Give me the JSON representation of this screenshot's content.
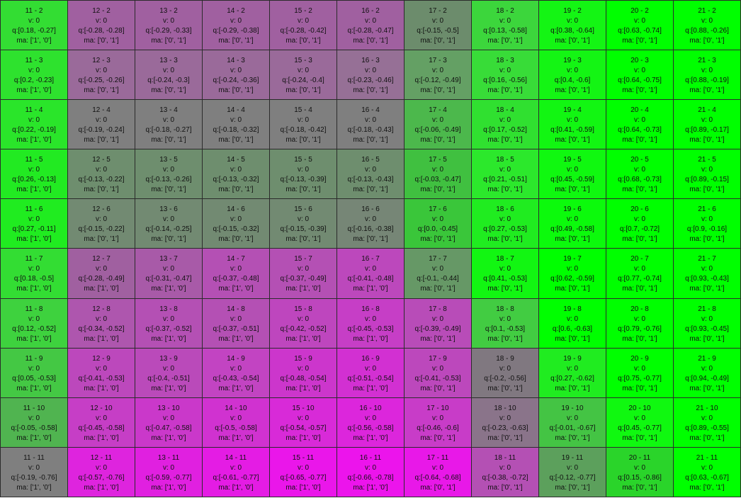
{
  "columns": [
    11,
    12,
    13,
    14,
    15,
    16,
    17,
    18,
    19,
    20,
    21
  ],
  "rows": [
    2,
    3,
    4,
    5,
    6,
    7,
    8,
    9,
    10,
    11
  ],
  "cells": [
    [
      {
        "id": "11 - 2",
        "v": "v: 0",
        "q": "q:[0.18, -0.27]",
        "ma": "ma: ['1', '0']",
        "color": "#33dd33"
      },
      {
        "id": "12 - 2",
        "v": "v: 0",
        "q": "q:[-0.28, -0.28]",
        "ma": "ma: ['0', '1']",
        "color": "#a060a0"
      },
      {
        "id": "13 - 2",
        "v": "v: 0",
        "q": "q:[-0.29, -0.33]",
        "ma": "ma: ['0', '1']",
        "color": "#a060a0"
      },
      {
        "id": "14 - 2",
        "v": "v: 0",
        "q": "q:[-0.29, -0.38]",
        "ma": "ma: ['0', '1']",
        "color": "#a060a0"
      },
      {
        "id": "15 - 2",
        "v": "v: 0",
        "q": "q:[-0.28, -0.42]",
        "ma": "ma: ['0', '1']",
        "color": "#a060a0"
      },
      {
        "id": "16 - 2",
        "v": "v: 0",
        "q": "q:[-0.28, -0.47]",
        "ma": "ma: ['0', '1']",
        "color": "#a060a0"
      },
      {
        "id": "17 - 2",
        "v": "v: 0",
        "q": "q:[-0.15, -0.5]",
        "ma": "ma: ['0', '1']",
        "color": "#6c8c6c"
      },
      {
        "id": "18 - 2",
        "v": "v: 0",
        "q": "q:[0.13, -0.58]",
        "ma": "ma: ['0', '1']",
        "color": "#3cd63c"
      },
      {
        "id": "19 - 2",
        "v": "v: 0",
        "q": "q:[0.38, -0.64]",
        "ma": "ma: ['0', '1']",
        "color": "#14f514"
      },
      {
        "id": "20 - 2",
        "v": "v: 0",
        "q": "q:[0.63, -0.74]",
        "ma": "ma: ['0', '1']",
        "color": "#00ff00"
      },
      {
        "id": "21 - 2",
        "v": "v: 0",
        "q": "q:[0.88, -0.26]",
        "ma": "ma: ['0', '1']",
        "color": "#00ff00"
      }
    ],
    [
      {
        "id": "11 - 3",
        "v": "v: 0",
        "q": "q:[0.2, -0.23]",
        "ma": "ma: ['1', '0']",
        "color": "#2ee22e"
      },
      {
        "id": "12 - 3",
        "v": "v: 0",
        "q": "q:[-0.25, -0.26]",
        "ma": "ma: ['0', '1']",
        "color": "#9a6a9a"
      },
      {
        "id": "13 - 3",
        "v": "v: 0",
        "q": "q:[-0.24, -0.3]",
        "ma": "ma: ['0', '1']",
        "color": "#9a6a9a"
      },
      {
        "id": "14 - 3",
        "v": "v: 0",
        "q": "q:[-0.24, -0.36]",
        "ma": "ma: ['0', '1']",
        "color": "#9a6a9a"
      },
      {
        "id": "15 - 3",
        "v": "v: 0",
        "q": "q:[-0.24, -0.4]",
        "ma": "ma: ['0', '1']",
        "color": "#9a6a9a"
      },
      {
        "id": "16 - 3",
        "v": "v: 0",
        "q": "q:[-0.23, -0.46]",
        "ma": "ma: ['0', '1']",
        "color": "#967096"
      },
      {
        "id": "17 - 3",
        "v": "v: 0",
        "q": "q:[-0.12, -0.49]",
        "ma": "ma: ['0', '1']",
        "color": "#64a064"
      },
      {
        "id": "18 - 3",
        "v": "v: 0",
        "q": "q:[0.16, -0.56]",
        "ma": "ma: ['0', '1']",
        "color": "#38dc38"
      },
      {
        "id": "19 - 3",
        "v": "v: 0",
        "q": "q:[0.4, -0.6]",
        "ma": "ma: ['0', '1']",
        "color": "#14f514"
      },
      {
        "id": "20 - 3",
        "v": "v: 0",
        "q": "q:[0.64, -0.75]",
        "ma": "ma: ['0', '1']",
        "color": "#00ff00"
      },
      {
        "id": "21 - 3",
        "v": "v: 0",
        "q": "q:[0.88, -0.19]",
        "ma": "ma: ['0', '1']",
        "color": "#00ff00"
      }
    ],
    [
      {
        "id": "11 - 4",
        "v": "v: 0",
        "q": "q:[0.22, -0.19]",
        "ma": "ma: ['1', '0']",
        "color": "#2ae52a"
      },
      {
        "id": "12 - 4",
        "v": "v: 0",
        "q": "q:[-0.19, -0.24]",
        "ma": "ma: ['0', '1']",
        "color": "#7f7f7f"
      },
      {
        "id": "13 - 4",
        "v": "v: 0",
        "q": "q:[-0.18, -0.27]",
        "ma": "ma: ['0', '1']",
        "color": "#7f7f7f"
      },
      {
        "id": "14 - 4",
        "v": "v: 0",
        "q": "q:[-0.18, -0.32]",
        "ma": "ma: ['0', '1']",
        "color": "#7f7f7f"
      },
      {
        "id": "15 - 4",
        "v": "v: 0",
        "q": "q:[-0.18, -0.42]",
        "ma": "ma: ['0', '1']",
        "color": "#7f7f7f"
      },
      {
        "id": "16 - 4",
        "v": "v: 0",
        "q": "q:[-0.18, -0.43]",
        "ma": "ma: ['0', '1']",
        "color": "#7f7f7f"
      },
      {
        "id": "17 - 4",
        "v": "v: 0",
        "q": "q:[-0.06, -0.49]",
        "ma": "ma: ['0', '1']",
        "color": "#4cb84c"
      },
      {
        "id": "18 - 4",
        "v": "v: 0",
        "q": "q:[0.17, -0.52]",
        "ma": "ma: ['0', '1']",
        "color": "#30e030"
      },
      {
        "id": "19 - 4",
        "v": "v: 0",
        "q": "q:[0.41, -0.59]",
        "ma": "ma: ['0', '1']",
        "color": "#12f612"
      },
      {
        "id": "20 - 4",
        "v": "v: 0",
        "q": "q:[0.64, -0.73]",
        "ma": "ma: ['0', '1']",
        "color": "#00ff00"
      },
      {
        "id": "21 - 4",
        "v": "v: 0",
        "q": "q:[0.89, -0.17]",
        "ma": "ma: ['0', '1']",
        "color": "#00ff00"
      }
    ],
    [
      {
        "id": "11 - 5",
        "v": "v: 0",
        "q": "q:[0.26, -0.13]",
        "ma": "ma: ['1', '0']",
        "color": "#22ea22"
      },
      {
        "id": "12 - 5",
        "v": "v: 0",
        "q": "q:[-0.13, -0.22]",
        "ma": "ma: ['0', '1']",
        "color": "#6e8e6e"
      },
      {
        "id": "13 - 5",
        "v": "v: 0",
        "q": "q:[-0.13, -0.26]",
        "ma": "ma: ['0', '1']",
        "color": "#6e8e6e"
      },
      {
        "id": "14 - 5",
        "v": "v: 0",
        "q": "q:[-0.13, -0.32]",
        "ma": "ma: ['0', '1']",
        "color": "#6e8e6e"
      },
      {
        "id": "15 - 5",
        "v": "v: 0",
        "q": "q:[-0.13, -0.39]",
        "ma": "ma: ['0', '1']",
        "color": "#6e8e6e"
      },
      {
        "id": "16 - 5",
        "v": "v: 0",
        "q": "q:[-0.13, -0.43]",
        "ma": "ma: ['0', '1']",
        "color": "#6e8e6e"
      },
      {
        "id": "17 - 5",
        "v": "v: 0",
        "q": "q:[-0.03, -0.47]",
        "ma": "ma: ['0', '1']",
        "color": "#40c040"
      },
      {
        "id": "18 - 5",
        "v": "v: 0",
        "q": "q:[0.21, -0.51]",
        "ma": "ma: ['0', '1']",
        "color": "#2ce82c"
      },
      {
        "id": "19 - 5",
        "v": "v: 0",
        "q": "q:[0.45, -0.59]",
        "ma": "ma: ['0', '1']",
        "color": "#10f810"
      },
      {
        "id": "20 - 5",
        "v": "v: 0",
        "q": "q:[0.68, -0.73]",
        "ma": "ma: ['0', '1']",
        "color": "#00ff00"
      },
      {
        "id": "21 - 5",
        "v": "v: 0",
        "q": "q:[0.89, -0.15]",
        "ma": "ma: ['0', '1']",
        "color": "#00ff00"
      }
    ],
    [
      {
        "id": "11 - 6",
        "v": "v: 0",
        "q": "q:[0.27, -0.11]",
        "ma": "ma: ['1', '0']",
        "color": "#20ec20"
      },
      {
        "id": "12 - 6",
        "v": "v: 0",
        "q": "q:[-0.15, -0.22]",
        "ma": "ma: ['0', '1']",
        "color": "#728a72"
      },
      {
        "id": "13 - 6",
        "v": "v: 0",
        "q": "q:[-0.14, -0.25]",
        "ma": "ma: ['0', '1']",
        "color": "#728a72"
      },
      {
        "id": "14 - 6",
        "v": "v: 0",
        "q": "q:[-0.15, -0.32]",
        "ma": "ma: ['0', '1']",
        "color": "#728a72"
      },
      {
        "id": "15 - 6",
        "v": "v: 0",
        "q": "q:[-0.15, -0.39]",
        "ma": "ma: ['0', '1']",
        "color": "#728a72"
      },
      {
        "id": "16 - 6",
        "v": "v: 0",
        "q": "q:[-0.16, -0.38]",
        "ma": "ma: ['0', '1']",
        "color": "#768676"
      },
      {
        "id": "17 - 6",
        "v": "v: 0",
        "q": "q:[0.0, -0.45]",
        "ma": "ma: ['0', '1']",
        "color": "#3ac63a"
      },
      {
        "id": "18 - 6",
        "v": "v: 0",
        "q": "q:[0.27, -0.53]",
        "ma": "ma: ['0', '1']",
        "color": "#20ec20"
      },
      {
        "id": "19 - 6",
        "v": "v: 0",
        "q": "q:[0.49, -0.58]",
        "ma": "ma: ['0', '1']",
        "color": "#0cfa0c"
      },
      {
        "id": "20 - 6",
        "v": "v: 0",
        "q": "q:[0.7, -0.72]",
        "ma": "ma: ['0', '1']",
        "color": "#00ff00"
      },
      {
        "id": "21 - 6",
        "v": "v: 0",
        "q": "q:[0.9, -0.16]",
        "ma": "ma: ['0', '1']",
        "color": "#00ff00"
      }
    ],
    [
      {
        "id": "11 - 7",
        "v": "v: 0",
        "q": "q:[0.18, -0.5]",
        "ma": "ma: ['1', '0']",
        "color": "#33dd33"
      },
      {
        "id": "12 - 7",
        "v": "v: 0",
        "q": "q:[-0.28, -0.49]",
        "ma": "ma: ['1', '0']",
        "color": "#a060a0"
      },
      {
        "id": "13 - 7",
        "v": "v: 0",
        "q": "q:[-0.31, -0.47]",
        "ma": "ma: ['1', '0']",
        "color": "#a85aa8"
      },
      {
        "id": "14 - 7",
        "v": "v: 0",
        "q": "q:[-0.37, -0.48]",
        "ma": "ma: ['1', '0']",
        "color": "#b450b4"
      },
      {
        "id": "15 - 7",
        "v": "v: 0",
        "q": "q:[-0.37, -0.49]",
        "ma": "ma: ['1', '0']",
        "color": "#b450b4"
      },
      {
        "id": "16 - 7",
        "v": "v: 0",
        "q": "q:[-0.41, -0.48]",
        "ma": "ma: ['1', '0']",
        "color": "#bc48bc"
      },
      {
        "id": "17 - 7",
        "v": "v: 0",
        "q": "q:[-0.1, -0.44]",
        "ma": "ma: ['0', '1']",
        "color": "#669866"
      },
      {
        "id": "18 - 7",
        "v": "v: 0",
        "q": "q:[0.41, -0.53]",
        "ma": "ma: ['0', '1']",
        "color": "#12f612"
      },
      {
        "id": "19 - 7",
        "v": "v: 0",
        "q": "q:[0.62, -0.59]",
        "ma": "ma: ['0', '1']",
        "color": "#00ff00"
      },
      {
        "id": "20 - 7",
        "v": "v: 0",
        "q": "q:[0.77, -0.74]",
        "ma": "ma: ['0', '1']",
        "color": "#00ff00"
      },
      {
        "id": "21 - 7",
        "v": "v: 0",
        "q": "q:[0.93, -0.43]",
        "ma": "ma: ['0', '1']",
        "color": "#00ff00"
      }
    ],
    [
      {
        "id": "11 - 8",
        "v": "v: 0",
        "q": "q:[0.12, -0.52]",
        "ma": "ma: ['1', '0']",
        "color": "#3ed23e"
      },
      {
        "id": "12 - 8",
        "v": "v: 0",
        "q": "q:[-0.34, -0.52]",
        "ma": "ma: ['1', '0']",
        "color": "#ae56ae"
      },
      {
        "id": "13 - 8",
        "v": "v: 0",
        "q": "q:[-0.37, -0.52]",
        "ma": "ma: ['1', '0']",
        "color": "#b450b4"
      },
      {
        "id": "14 - 8",
        "v": "v: 0",
        "q": "q:[-0.37, -0.51]",
        "ma": "ma: ['1', '0']",
        "color": "#b450b4"
      },
      {
        "id": "15 - 8",
        "v": "v: 0",
        "q": "q:[-0.42, -0.52]",
        "ma": "ma: ['1', '0']",
        "color": "#be46be"
      },
      {
        "id": "16 - 8",
        "v": "v: 0",
        "q": "q:[-0.45, -0.53]",
        "ma": "ma: ['1', '0']",
        "color": "#c63ec6"
      },
      {
        "id": "17 - 8",
        "v": "v: 0",
        "q": "q:[-0.39, -0.49]",
        "ma": "ma: ['0', '1']",
        "color": "#b84cb8"
      },
      {
        "id": "18 - 8",
        "v": "v: 0",
        "q": "q:[0.1, -0.53]",
        "ma": "ma: ['0', '1']",
        "color": "#42cc42"
      },
      {
        "id": "19 - 8",
        "v": "v: 0",
        "q": "q:[0.6, -0.63]",
        "ma": "ma: ['0', '1']",
        "color": "#00ff00"
      },
      {
        "id": "20 - 8",
        "v": "v: 0",
        "q": "q:[0.79, -0.76]",
        "ma": "ma: ['0', '1']",
        "color": "#00ff00"
      },
      {
        "id": "21 - 8",
        "v": "v: 0",
        "q": "q:[0.93, -0.45]",
        "ma": "ma: ['0', '1']",
        "color": "#00ff00"
      }
    ],
    [
      {
        "id": "11 - 9",
        "v": "v: 0",
        "q": "q:[0.05, -0.53]",
        "ma": "ma: ['1', '0']",
        "color": "#44c844"
      },
      {
        "id": "12 - 9",
        "v": "v: 0",
        "q": "q:[-0.41, -0.53]",
        "ma": "ma: ['1', '0']",
        "color": "#bc48bc"
      },
      {
        "id": "13 - 9",
        "v": "v: 0",
        "q": "q:[-0.4, -0.51]",
        "ma": "ma: ['1', '0']",
        "color": "#ba4aba"
      },
      {
        "id": "14 - 9",
        "v": "v: 0",
        "q": "q:[-0.43, -0.54]",
        "ma": "ma: ['1', '0']",
        "color": "#c244c2"
      },
      {
        "id": "15 - 9",
        "v": "v: 0",
        "q": "q:[-0.48, -0.54]",
        "ma": "ma: ['1', '0']",
        "color": "#cc36cc"
      },
      {
        "id": "16 - 9",
        "v": "v: 0",
        "q": "q:[-0.51, -0.54]",
        "ma": "ma: ['1', '0']",
        "color": "#d230d2"
      },
      {
        "id": "17 - 9",
        "v": "v: 0",
        "q": "q:[-0.41, -0.53]",
        "ma": "ma: ['0', '1']",
        "color": "#bc48bc"
      },
      {
        "id": "18 - 9",
        "v": "v: 0",
        "q": "q:[-0.2, -0.56]",
        "ma": "ma: ['0', '1']",
        "color": "#807880"
      },
      {
        "id": "19 - 9",
        "v": "v: 0",
        "q": "q:[0.27, -0.62]",
        "ma": "ma: ['0', '1']",
        "color": "#20ec20"
      },
      {
        "id": "20 - 9",
        "v": "v: 0",
        "q": "q:[0.75, -0.77]",
        "ma": "ma: ['0', '1']",
        "color": "#00ff00"
      },
      {
        "id": "21 - 9",
        "v": "v: 0",
        "q": "q:[0.94, -0.49]",
        "ma": "ma: ['0', '1']",
        "color": "#00ff00"
      }
    ],
    [
      {
        "id": "11 - 10",
        "v": "v: 0",
        "q": "q:[-0.05, -0.58]",
        "ma": "ma: ['1', '0']",
        "color": "#50b450"
      },
      {
        "id": "12 - 10",
        "v": "v: 0",
        "q": "q:[-0.45, -0.58]",
        "ma": "ma: ['1', '0']",
        "color": "#c63ec6"
      },
      {
        "id": "13 - 10",
        "v": "v: 0",
        "q": "q:[-0.47, -0.58]",
        "ma": "ma: ['1', '0']",
        "color": "#ca38ca"
      },
      {
        "id": "14 - 10",
        "v": "v: 0",
        "q": "q:[-0.5, -0.58]",
        "ma": "ma: ['1', '0']",
        "color": "#d032d0"
      },
      {
        "id": "15 - 10",
        "v": "v: 0",
        "q": "q:[-0.54, -0.57]",
        "ma": "ma: ['1', '0']",
        "color": "#d82ad8"
      },
      {
        "id": "16 - 10",
        "v": "v: 0",
        "q": "q:[-0.56, -0.58]",
        "ma": "ma: ['1', '0']",
        "color": "#dc26dc"
      },
      {
        "id": "17 - 10",
        "v": "v: 0",
        "q": "q:[-0.46, -0.6]",
        "ma": "ma: ['0', '1']",
        "color": "#c83cc8"
      },
      {
        "id": "18 - 10",
        "v": "v: 0",
        "q": "q:[-0.23, -0.63]",
        "ma": "ma: ['0', '1']",
        "color": "#8a748a"
      },
      {
        "id": "19 - 10",
        "v": "v: 0",
        "q": "q:[-0.01, -0.67]",
        "ma": "ma: ['0', '1']",
        "color": "#44c444"
      },
      {
        "id": "20 - 10",
        "v": "v: 0",
        "q": "q:[0.45, -0.77]",
        "ma": "ma: ['0', '1']",
        "color": "#10f810"
      },
      {
        "id": "21 - 10",
        "v": "v: 0",
        "q": "q:[0.89, -0.55]",
        "ma": "ma: ['0', '1']",
        "color": "#00ff00"
      }
    ],
    [
      {
        "id": "11 - 11",
        "v": "v: 0",
        "q": "q:[-0.19, -0.76]",
        "ma": "ma: ['1', '0']",
        "color": "#7f7f7f"
      },
      {
        "id": "12 - 11",
        "v": "v: 0",
        "q": "q:[-0.57, -0.76]",
        "ma": "ma: ['1', '0']",
        "color": "#de24de"
      },
      {
        "id": "13 - 11",
        "v": "v: 0",
        "q": "q:[-0.59, -0.77]",
        "ma": "ma: ['1', '0']",
        "color": "#e020e0"
      },
      {
        "id": "14 - 11",
        "v": "v: 0",
        "q": "q:[-0.61, -0.77]",
        "ma": "ma: ['1', '0']",
        "color": "#e41ce4"
      },
      {
        "id": "15 - 11",
        "v": "v: 0",
        "q": "q:[-0.65, -0.77]",
        "ma": "ma: ['1', '0']",
        "color": "#ea16ea"
      },
      {
        "id": "16 - 11",
        "v": "v: 0",
        "q": "q:[-0.66, -0.78]",
        "ma": "ma: ['1', '0']",
        "color": "#ec14ec"
      },
      {
        "id": "17 - 11",
        "v": "v: 0",
        "q": "q:[-0.64, -0.68]",
        "ma": "ma: ['0', '1']",
        "color": "#e818e8"
      },
      {
        "id": "18 - 11",
        "v": "v: 0",
        "q": "q:[-0.38, -0.72]",
        "ma": "ma: ['0', '1']",
        "color": "#b450b4"
      },
      {
        "id": "19 - 11",
        "v": "v: 0",
        "q": "q:[-0.12, -0.77]",
        "ma": "ma: ['0', '1']",
        "color": "#5ca05c"
      },
      {
        "id": "20 - 11",
        "v": "v: 0",
        "q": "q:[0.15, -0.86]",
        "ma": "ma: ['0', '1']",
        "color": "#2ad42a"
      },
      {
        "id": "21 - 11",
        "v": "v: 0",
        "q": "q:[0.63, -0.67]",
        "ma": "ma: ['0', '1']",
        "color": "#00ff00"
      }
    ]
  ]
}
